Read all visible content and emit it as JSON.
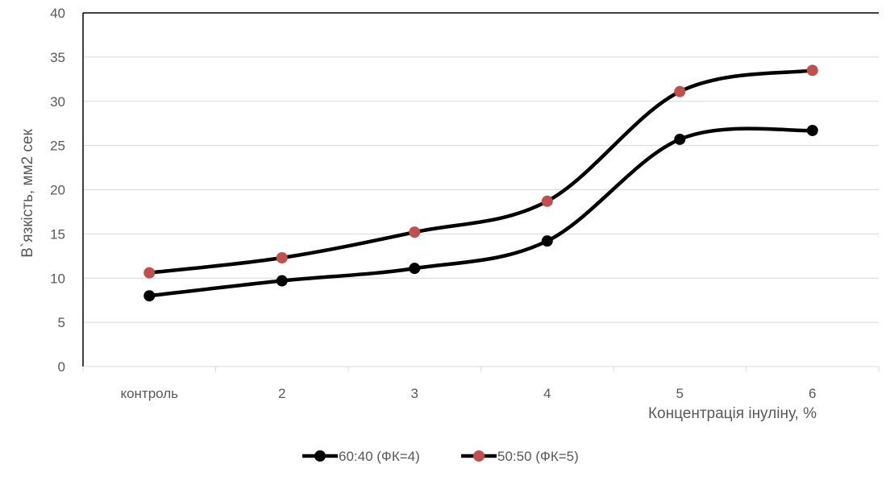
{
  "chart_data": {
    "type": "line",
    "title": "",
    "xlabel": "Концентрація інуліну, %",
    "ylabel": "В`язкість, мм2 сек",
    "categories": [
      "контроль",
      "2",
      "3",
      "4",
      "5",
      "6"
    ],
    "ylim": [
      0,
      40
    ],
    "yticks": [
      0,
      5,
      10,
      15,
      20,
      25,
      30,
      35,
      40
    ],
    "grid": "horizontal",
    "legend_position": "bottom",
    "smooth": true,
    "series": [
      {
        "name": "60:40 (ФК=4)",
        "values": [
          8.0,
          9.7,
          11.1,
          14.2,
          25.7,
          26.7
        ],
        "line_color": "#000000",
        "marker_color": "#000000"
      },
      {
        "name": "50:50 (ФК=5)",
        "values": [
          10.6,
          12.3,
          15.2,
          18.7,
          31.1,
          33.5
        ],
        "line_color": "#000000",
        "marker_color": "#c0504d"
      }
    ]
  }
}
